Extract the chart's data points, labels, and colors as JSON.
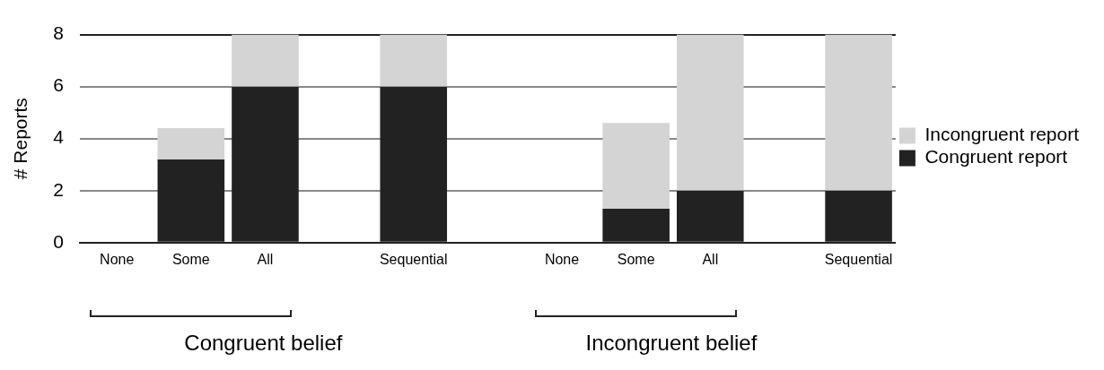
{
  "chart_data": {
    "type": "bar",
    "stacked": true,
    "categories": [
      "None",
      "Some",
      "All",
      null,
      "Sequential",
      null,
      "None",
      "Some",
      "All",
      null,
      "Sequential"
    ],
    "series": [
      {
        "name": "Congruent report",
        "color": "#222222",
        "values": [
          0,
          3.2,
          6,
          null,
          6,
          null,
          0,
          1.3,
          2,
          null,
          2
        ]
      },
      {
        "name": "Incongruent report",
        "color": "#d4d4d4",
        "values": [
          0,
          1.2,
          2,
          null,
          2,
          null,
          0,
          3.3,
          6,
          null,
          6
        ]
      }
    ],
    "ylabel": "# Reports",
    "ylim": [
      0,
      8
    ],
    "yticks": [
      0,
      2,
      4,
      6,
      8
    ],
    "grid": "y",
    "legend": "right",
    "annotations": [
      "Congruent belief",
      "Incongruent belief"
    ]
  }
}
